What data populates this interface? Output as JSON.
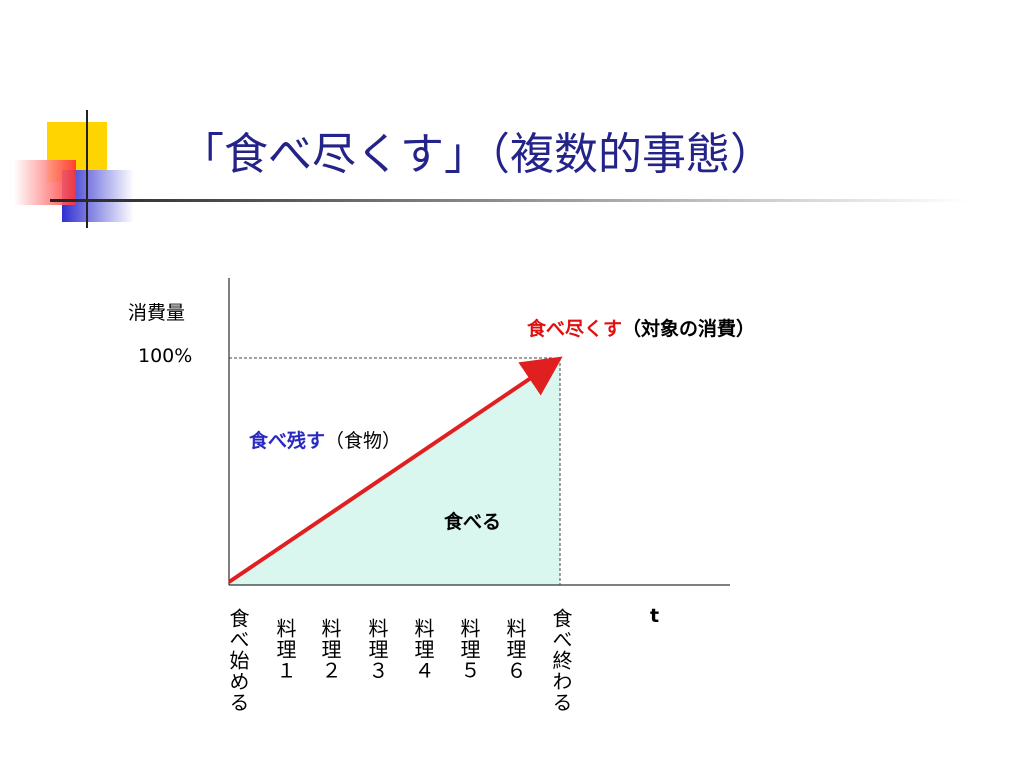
{
  "header": {
    "title": "「食べ尽くす」（複数的事態）"
  },
  "diagram": {
    "y_label": "消費量",
    "y_max_label": "100%",
    "eat_up": "食べ尽くす",
    "eat_up_note": "（対象の消費）",
    "leave": "食べ残す",
    "leave_note": "（食物）",
    "eat": "食べる",
    "x_label": "t",
    "x_ticks": [
      "食べ始める",
      "料理１",
      "料理２",
      "料理３",
      "料理４",
      "料理５",
      "料理６",
      "食べ終わる"
    ]
  }
}
